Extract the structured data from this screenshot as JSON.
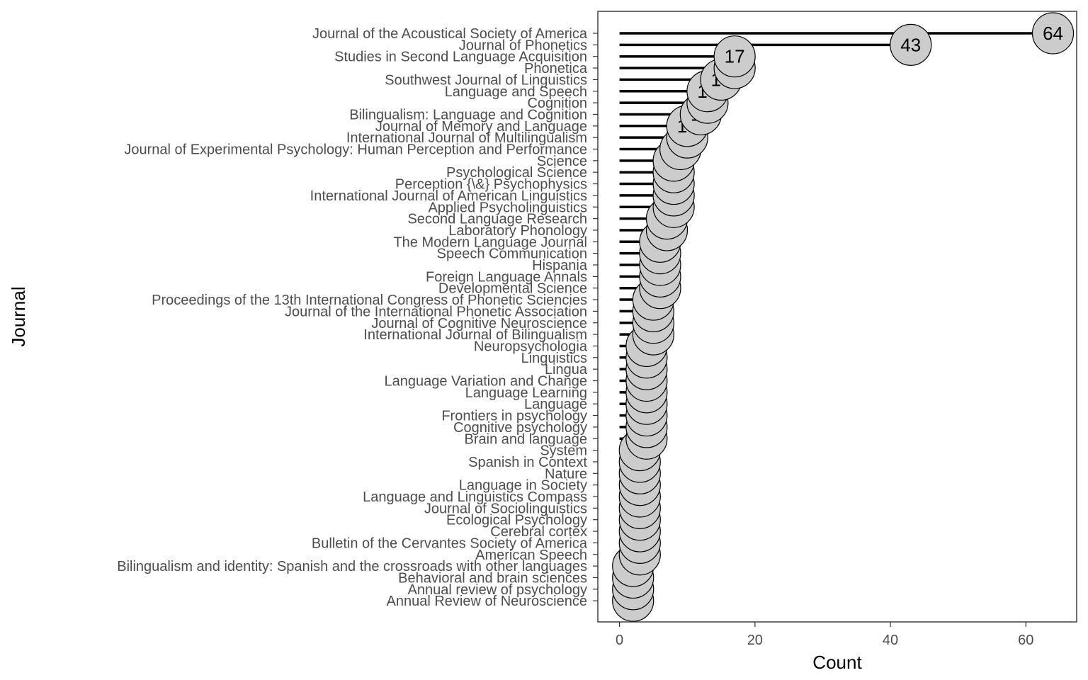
{
  "chart_data": {
    "type": "lollipop",
    "orientation": "horizontal",
    "xlabel": "Count",
    "ylabel": "Journal",
    "xlim": [
      -3.2,
      67.5
    ],
    "x_ticks": [
      0,
      20,
      40,
      60
    ],
    "grid": false,
    "colors": {
      "stem": "#000000",
      "point_fill": "#cccccc",
      "point_stroke": "#000000",
      "panel_border": "#333333",
      "label_text": "#4d4d4d"
    },
    "categories": [
      "Journal of the Acoustical Society of America",
      "Journal of Phonetics",
      "Studies in Second Language Acquisition",
      "Phonetica",
      "Southwest Journal of Linguistics",
      "Language and Speech",
      "Cognition",
      "Bilingualism: Language and Cognition",
      "Journal of Memory and Language",
      "International Journal of Multilingualism",
      "Journal of Experimental Psychology: Human Perception and Performance",
      "Science",
      "Psychological Science",
      "Perception {\\&} Psychophysics",
      "International Journal of American Linguistics",
      "Applied Psycholinguistics",
      "Second Language Research",
      "Laboratory Phonology",
      "The Modern Language Journal",
      "Speech Communication",
      "Hispania",
      "Foreign Language Annals",
      "Developmental Science",
      "Proceedings of the 13th International Congress of Phonetic Sciencies",
      "Journal of the International Phonetic Association",
      "Journal of Cognitive Neuroscience",
      "International Journal of Bilingualism",
      "Neuropsychologia",
      "Linguistics",
      "Lingua",
      "Language Variation and Change",
      "Language Learning",
      "Language",
      "Frontiers in psychology",
      "Cognitive psychology",
      "Brain and language",
      "System",
      "Spanish in Context",
      "Nature",
      "Language in Society",
      "Language and Linguistics Compass",
      "Journal of Sociolinguistics",
      "Ecological Psychology",
      "Cerebral cortex",
      "Bulletin of the Cervantes Society of America",
      "American Speech",
      "Bilingualism and identity: Spanish and the crossroads with other languages",
      "Behavioral and brain sciences",
      "Annual review of psychology",
      "Annual Review of Neuroscience"
    ],
    "values": [
      64,
      43,
      17,
      17,
      15,
      13,
      13,
      12,
      10,
      10,
      9,
      8,
      8,
      8,
      8,
      8,
      7,
      7,
      6,
      6,
      6,
      6,
      6,
      5,
      5,
      5,
      5,
      4,
      4,
      4,
      4,
      4,
      4,
      4,
      4,
      4,
      3,
      3,
      3,
      3,
      3,
      3,
      3,
      3,
      3,
      3,
      2,
      2,
      2,
      2
    ]
  }
}
